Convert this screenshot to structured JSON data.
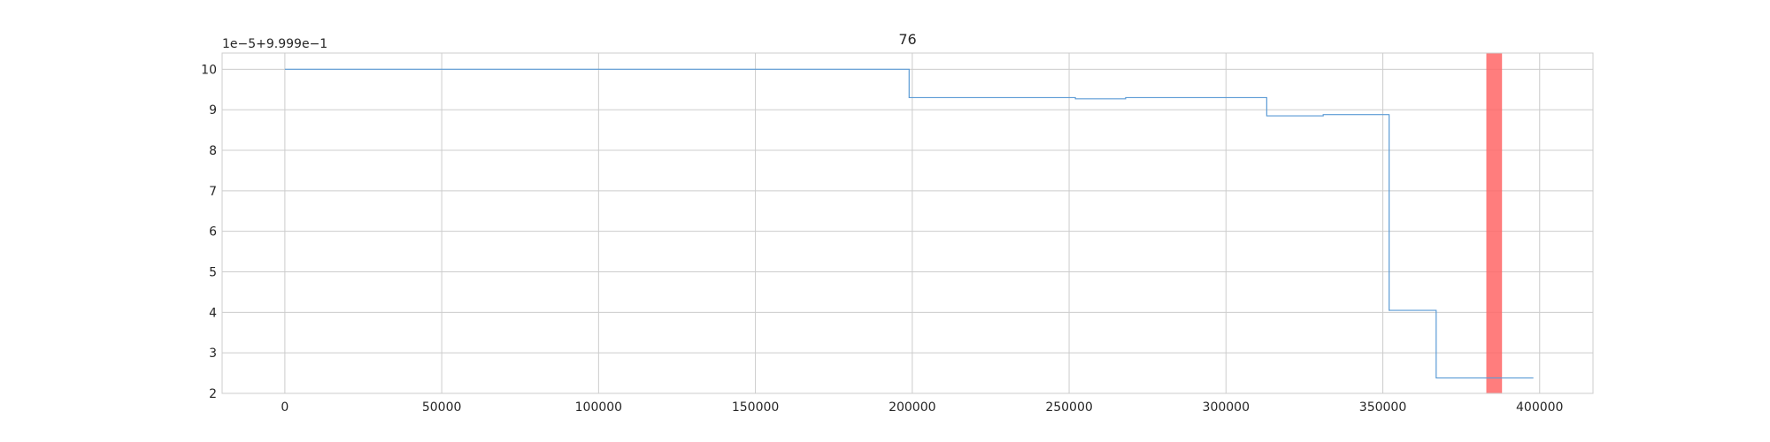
{
  "chart_data": {
    "type": "line",
    "title": "76",
    "offset_label": "1e−5+9.999e−1",
    "xlabel": "",
    "ylabel": "",
    "xlim": [
      -20000,
      417000
    ],
    "ylim": [
      2,
      10.4
    ],
    "x_ticks": [
      0,
      50000,
      100000,
      150000,
      200000,
      250000,
      300000,
      350000,
      400000
    ],
    "x_tick_labels": [
      "0",
      "50000",
      "100000",
      "150000",
      "200000",
      "250000",
      "300000",
      "350000",
      "400000"
    ],
    "y_ticks": [
      2,
      3,
      4,
      5,
      6,
      7,
      8,
      9,
      10
    ],
    "y_tick_labels": [
      "2",
      "3",
      "4",
      "5",
      "6",
      "7",
      "8",
      "9",
      "10"
    ],
    "grid": true,
    "series": [
      {
        "color": "#5b9bd5",
        "step": "post",
        "x": [
          0,
          199000,
          252000,
          268000,
          313000,
          331000,
          352000,
          367000,
          398000
        ],
        "y": [
          10.0,
          9.3,
          9.27,
          9.3,
          8.85,
          8.88,
          4.05,
          2.38,
          2.38
        ]
      }
    ],
    "highlight_span": {
      "x": [
        383000,
        388000
      ],
      "color": "#ff6666"
    }
  }
}
